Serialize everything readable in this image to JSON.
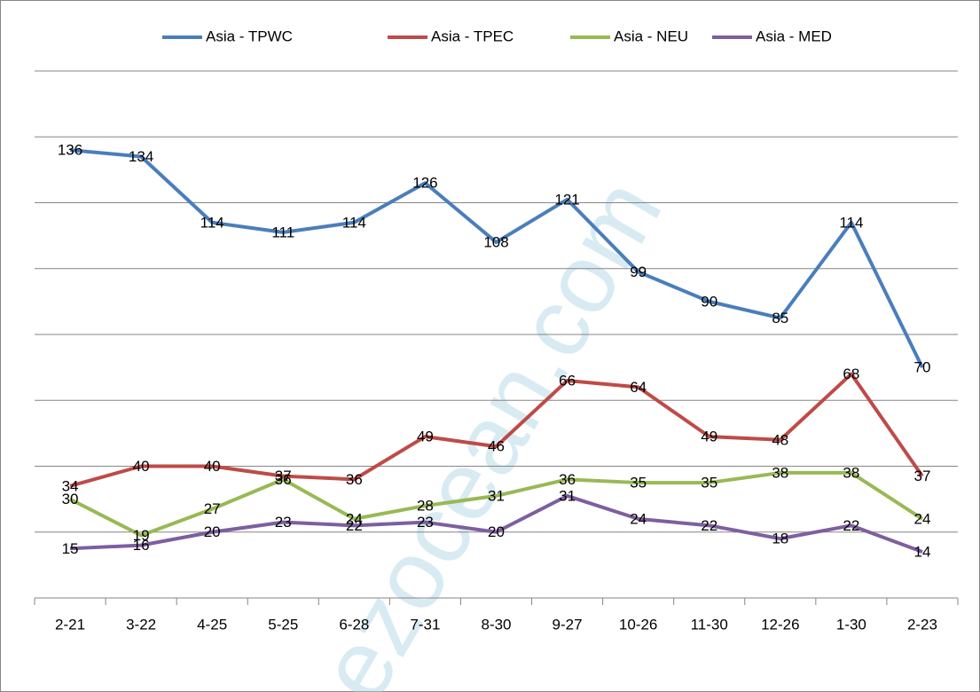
{
  "chart_data": {
    "type": "line",
    "categories": [
      "2-21",
      "3-22",
      "4-25",
      "5-25",
      "6-28",
      "7-31",
      "8-30",
      "9-27",
      "10-26",
      "11-30",
      "12-26",
      "1-30",
      "2-23"
    ],
    "series": [
      {
        "name": "Asia - TPWC",
        "color": "#4a7ebb",
        "values": [
          136,
          134,
          114,
          111,
          114,
          126,
          108,
          121,
          99,
          90,
          85,
          114,
          70
        ]
      },
      {
        "name": "Asia - TPEC",
        "color": "#be4b48",
        "values": [
          34,
          40,
          40,
          37,
          36,
          49,
          46,
          66,
          64,
          49,
          48,
          68,
          37
        ]
      },
      {
        "name": "Asia - NEU",
        "color": "#98b954",
        "values": [
          30,
          19,
          27,
          36,
          24,
          28,
          31,
          36,
          35,
          35,
          38,
          38,
          24
        ]
      },
      {
        "name": "Asia - MED",
        "color": "#7d5fa0",
        "values": [
          15,
          16,
          20,
          23,
          22,
          23,
          20,
          31,
          24,
          22,
          18,
          22,
          14
        ]
      }
    ],
    "ylim": [
      0,
      160
    ],
    "yticks": [
      0,
      20,
      40,
      60,
      80,
      100,
      120,
      140,
      160
    ],
    "grid": true,
    "legend": "top",
    "watermark": "ezocean.com"
  }
}
